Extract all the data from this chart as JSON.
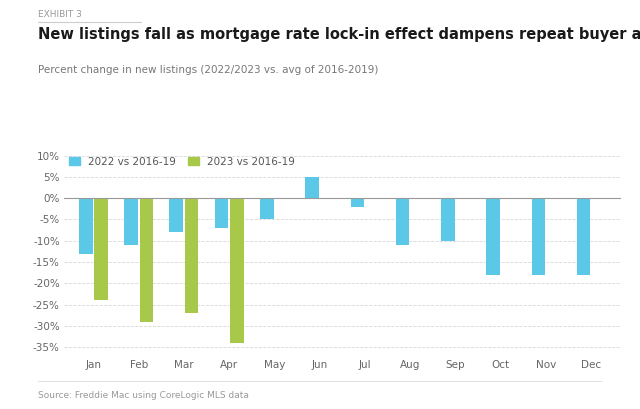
{
  "months": [
    "Jan",
    "Feb",
    "Mar",
    "Apr",
    "May",
    "Jun",
    "Jul",
    "Aug",
    "Sep",
    "Oct",
    "Nov",
    "Dec"
  ],
  "values_2022": [
    -13,
    -11,
    -8,
    -7,
    -5,
    5,
    -2,
    -11,
    -10,
    -18,
    -18,
    -18
  ],
  "values_2023": [
    -24,
    -29,
    -27,
    -34,
    null,
    null,
    null,
    null,
    null,
    null,
    null,
    null
  ],
  "color_2022": "#5bc8e8",
  "color_2023": "#a8c84a",
  "exhibit_label": "EXHIBIT 3",
  "title": "New listings fall as mortgage rate lock-in effect dampens repeat buyer activity",
  "subtitle": "Percent change in new listings (2022/2023 vs. avg of 2016-2019)",
  "legend_2022": "2022 vs 2016-19",
  "legend_2023": "2023 vs 2016-19",
  "source": "Source: Freddie Mac using CoreLogic MLS data",
  "ylim": [
    -37,
    11
  ],
  "yticks": [
    10,
    5,
    0,
    -5,
    -10,
    -15,
    -20,
    -25,
    -30,
    -35
  ],
  "ytick_labels": [
    "10%",
    "5%",
    "0%",
    "-5%",
    "-10%",
    "-15%",
    "-20%",
    "-25%",
    "-30%",
    "-35%"
  ],
  "background_color": "#ffffff",
  "grid_color": "#d8d8d8"
}
